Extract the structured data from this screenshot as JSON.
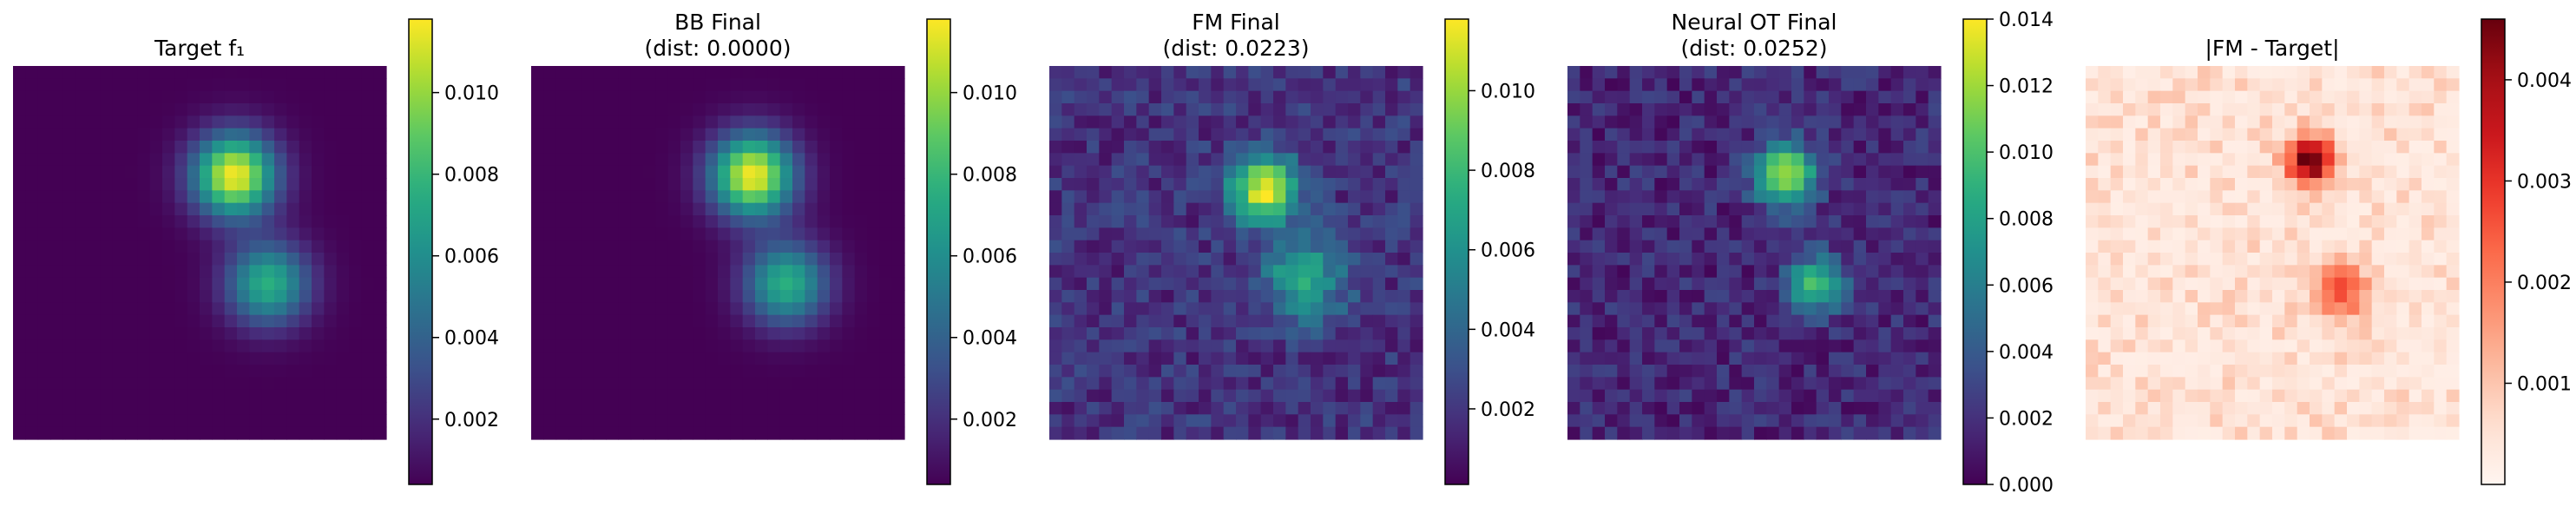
{
  "chart_data": [
    {
      "type": "heatmap",
      "title": "Target f₁",
      "subtitle": "",
      "colormap": "viridis",
      "grid_size": 30,
      "colorbar_ticks": [
        0.002,
        0.004,
        0.006,
        0.008,
        0.01
      ],
      "colorbar_tick_labels": [
        "0.002",
        "0.004",
        "0.006",
        "0.008",
        "0.010"
      ],
      "colorbar_range": [
        0.0004,
        0.0118
      ],
      "grid": false,
      "features": [
        {
          "center": [
            17.8,
            8.8
          ],
          "sigma": 2.3,
          "peak": 0.0113
        },
        {
          "center": [
            20.5,
            17.5
          ],
          "sigma": 2.3,
          "peak": 0.0072
        }
      ],
      "noise_level": 0,
      "background": 0.0004
    },
    {
      "type": "heatmap",
      "title": "BB Final",
      "subtitle": "(dist: 0.0000)",
      "colormap": "viridis",
      "grid_size": 30,
      "colorbar_ticks": [
        0.002,
        0.004,
        0.006,
        0.008,
        0.01
      ],
      "colorbar_tick_labels": [
        "0.002",
        "0.004",
        "0.006",
        "0.008",
        "0.010"
      ],
      "colorbar_range": [
        0.0004,
        0.0118
      ],
      "grid": false,
      "features": [
        {
          "center": [
            17.8,
            8.8
          ],
          "sigma": 2.3,
          "peak": 0.0113
        },
        {
          "center": [
            20.5,
            17.5
          ],
          "sigma": 2.3,
          "peak": 0.0072
        }
      ],
      "noise_level": 0,
      "background": 0.0004
    },
    {
      "type": "heatmap",
      "title": "FM Final",
      "subtitle": "(dist: 0.0223)",
      "colormap": "viridis",
      "grid_size": 30,
      "colorbar_ticks": [
        0.002,
        0.004,
        0.006,
        0.008,
        0.01
      ],
      "colorbar_tick_labels": [
        "0.002",
        "0.004",
        "0.006",
        "0.008",
        "0.010"
      ],
      "colorbar_range": [
        0.0001,
        0.0118
      ],
      "grid": false,
      "features": [
        {
          "center": [
            17.2,
            9.9
          ],
          "sigma": 1.9,
          "peak": 0.0095
        },
        {
          "center": [
            20.5,
            17.0
          ],
          "sigma": 2.4,
          "peak": 0.0052
        }
      ],
      "noise_level": 0.0012,
      "background": 0.0018
    },
    {
      "type": "heatmap",
      "title": "Neural OT Final",
      "subtitle": "(dist: 0.0252)",
      "colormap": "viridis",
      "grid_size": 30,
      "colorbar_ticks": [
        0.0,
        0.002,
        0.004,
        0.006,
        0.008,
        0.01,
        0.012,
        0.014
      ],
      "colorbar_tick_labels": [
        "0.000",
        "0.002",
        "0.004",
        "0.006",
        "0.008",
        "0.010",
        "0.012",
        "0.014"
      ],
      "colorbar_range": [
        0.0,
        0.014
      ],
      "grid": false,
      "features": [
        {
          "center": [
            17.5,
            8.8
          ],
          "sigma": 1.7,
          "peak": 0.0115
        },
        {
          "center": [
            20.0,
            17.6
          ],
          "sigma": 1.6,
          "peak": 0.0085
        }
      ],
      "noise_level": 0.0014,
      "background": 0.0016
    },
    {
      "type": "heatmap",
      "title": "|FM - Target|",
      "subtitle": "",
      "colormap": "reds",
      "grid_size": 30,
      "colorbar_ticks": [
        0.001,
        0.002,
        0.003,
        0.004
      ],
      "colorbar_tick_labels": [
        "0.001",
        "0.002",
        "0.003",
        "0.004"
      ],
      "colorbar_range": [
        0.0,
        0.0046
      ],
      "grid": false,
      "features": [
        {
          "center": [
            18.1,
            7.6
          ],
          "sigma": 1.3,
          "peak": 0.0043
        },
        {
          "center": [
            20.5,
            18.2
          ],
          "sigma": 1.5,
          "peak": 0.0022
        }
      ],
      "noise_level": 0.0006,
      "background": 0.0002
    }
  ]
}
